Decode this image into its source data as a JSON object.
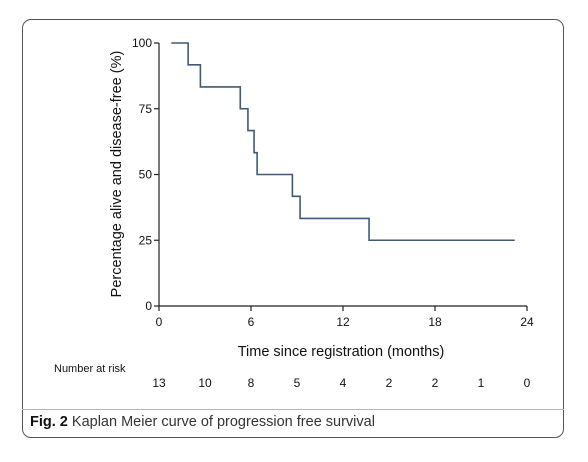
{
  "chart_data": {
    "type": "line",
    "step": true,
    "xlabel": "Time since registration (months)",
    "ylabel": "Percentage alive and disease-free (%)",
    "xlim": [
      0,
      24
    ],
    "ylim": [
      0,
      100
    ],
    "x_ticks": [
      0,
      6,
      12,
      18,
      24
    ],
    "y_ticks": [
      0,
      25,
      50,
      75,
      100
    ],
    "grid": false,
    "color": "#3d5a78",
    "steps": [
      {
        "x": 0.8,
        "y": 100
      },
      {
        "x": 1.9,
        "y": 91.7
      },
      {
        "x": 2.7,
        "y": 83.3
      },
      {
        "x": 5.3,
        "y": 75
      },
      {
        "x": 5.8,
        "y": 66.7
      },
      {
        "x": 6.2,
        "y": 58.3
      },
      {
        "x": 6.4,
        "y": 50
      },
      {
        "x": 8.7,
        "y": 41.7
      },
      {
        "x": 9.2,
        "y": 33.3
      },
      {
        "x": 13.7,
        "y": 25
      },
      {
        "x": 23.2,
        "y": 25
      }
    ],
    "risk_table": {
      "label": "Number at risk",
      "times": [
        0,
        3,
        6,
        9,
        12,
        15,
        18,
        21,
        24
      ],
      "counts": [
        "13",
        "10",
        "8",
        "5",
        "4",
        "2",
        "2",
        "1",
        "0"
      ]
    }
  },
  "caption": {
    "fig_label": "Fig. 2",
    "text": " Kaplan Meier curve of progression free survival"
  }
}
